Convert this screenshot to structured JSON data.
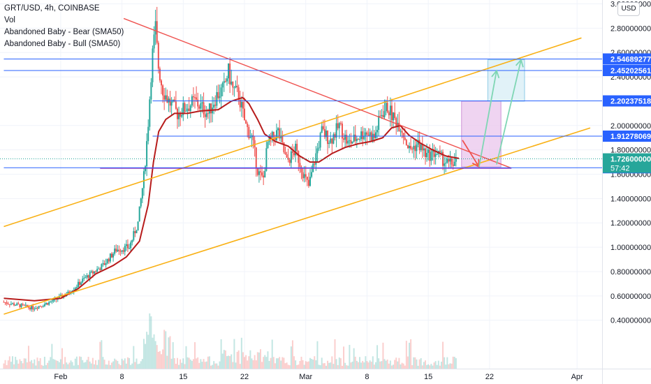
{
  "legend": {
    "symbol_line": "GRT/USD, 4h, COINBASE",
    "vol_label": "Vol",
    "indicator_bear": "Abandoned Baby - Bear (SMA50)",
    "indicator_bull": "Abandoned Baby - Bull (SMA50)"
  },
  "currency_button": "USD",
  "colors": {
    "up": "#26a69a",
    "down": "#ef5350",
    "sma": "#b71c1c",
    "channel": "#f9b116",
    "resistance": "#ef5350",
    "hline": "#2962ff",
    "support": "#9c27b0"
  },
  "chart_data": {
    "type": "candlestick",
    "ylim": [
      0.27,
      3.05
    ],
    "y_ticks": [
      3.0,
      2.8,
      2.6,
      2.4,
      2.0,
      1.8,
      1.6,
      1.4,
      1.2,
      1.0,
      0.8,
      0.6,
      0.4
    ],
    "y_tick_labels": [
      "3.00000000",
      "2.80000000",
      "2.60000000",
      "2.40000000",
      "2.00000000",
      "1.80000000",
      "1.60000000",
      "1.40000000",
      "1.20000000",
      "1.00000000",
      "0.80000000",
      "0.60000000",
      "0.40000000"
    ],
    "x_labels": [
      {
        "label": "Feb",
        "day": 0
      },
      {
        "label": "8",
        "day": 7
      },
      {
        "label": "15",
        "day": 14
      },
      {
        "label": "22",
        "day": 21
      },
      {
        "label": "Mar",
        "day": 28
      },
      {
        "label": "8",
        "day": 35
      },
      {
        "label": "15",
        "day": 42
      },
      {
        "label": "22",
        "day": 49
      },
      {
        "label": "Apr",
        "day": 59
      }
    ],
    "xlim_days": [
      -6.5,
      61.8
    ],
    "price_path": [
      [
        -6.5,
        0.55
      ],
      [
        -3,
        0.5
      ],
      [
        -1,
        0.55
      ],
      [
        1,
        0.62
      ],
      [
        3,
        0.75
      ],
      [
        5,
        0.85
      ],
      [
        6.5,
        0.98
      ],
      [
        8,
        1.0
      ],
      [
        9,
        1.2
      ],
      [
        9.7,
        1.6
      ],
      [
        10.1,
        1.95
      ],
      [
        10.6,
        2.55
      ],
      [
        11.0,
        2.8
      ],
      [
        11.3,
        2.5
      ],
      [
        11.8,
        2.3
      ],
      [
        12.5,
        2.2
      ],
      [
        13.5,
        2.1
      ],
      [
        14.5,
        2.15
      ],
      [
        15.5,
        2.2
      ],
      [
        17,
        2.1
      ],
      [
        18,
        2.25
      ],
      [
        18.8,
        2.3
      ],
      [
        19.3,
        2.45
      ],
      [
        19.8,
        2.3
      ],
      [
        20.5,
        2.25
      ],
      [
        21.3,
        2.0
      ],
      [
        22,
        1.9
      ],
      [
        22.7,
        1.62
      ],
      [
        23.3,
        1.55
      ],
      [
        23.8,
        1.85
      ],
      [
        25,
        1.95
      ],
      [
        26,
        1.7
      ],
      [
        27,
        1.8
      ],
      [
        28,
        1.58
      ],
      [
        28.5,
        1.5
      ],
      [
        29.3,
        1.75
      ],
      [
        30,
        1.95
      ],
      [
        31,
        1.88
      ],
      [
        32,
        2.0
      ],
      [
        33,
        1.85
      ],
      [
        34,
        1.9
      ],
      [
        35,
        1.95
      ],
      [
        36,
        1.9
      ],
      [
        36.8,
        2.1
      ],
      [
        37.5,
        2.15
      ],
      [
        38.3,
        2.05
      ],
      [
        39,
        2.0
      ],
      [
        40,
        1.8
      ],
      [
        41,
        1.85
      ],
      [
        42,
        1.75
      ],
      [
        43,
        1.78
      ],
      [
        43.8,
        1.72
      ],
      [
        44.5,
        1.68
      ],
      [
        45.2,
        1.7
      ]
    ],
    "sma_path": [
      [
        -6.5,
        0.58
      ],
      [
        -3,
        0.56
      ],
      [
        0,
        0.58
      ],
      [
        2,
        0.66
      ],
      [
        4,
        0.78
      ],
      [
        6,
        0.85
      ],
      [
        7.5,
        0.92
      ],
      [
        9,
        1.05
      ],
      [
        10,
        1.35
      ],
      [
        10.6,
        1.7
      ],
      [
        11.2,
        1.95
      ],
      [
        12,
        2.05
      ],
      [
        13,
        2.1
      ],
      [
        14.5,
        2.1
      ],
      [
        16,
        2.12
      ],
      [
        18,
        2.13
      ],
      [
        19.5,
        2.2
      ],
      [
        20.8,
        2.23
      ],
      [
        21.5,
        2.18
      ],
      [
        22.5,
        2.05
      ],
      [
        23.3,
        1.93
      ],
      [
        24.5,
        1.87
      ],
      [
        26,
        1.83
      ],
      [
        27.3,
        1.75
      ],
      [
        28.5,
        1.7
      ],
      [
        29.5,
        1.7
      ],
      [
        31,
        1.77
      ],
      [
        32.5,
        1.82
      ],
      [
        34,
        1.85
      ],
      [
        35.5,
        1.87
      ],
      [
        36.8,
        1.9
      ],
      [
        37.8,
        1.98
      ],
      [
        38.8,
        2.0
      ],
      [
        39.8,
        1.92
      ],
      [
        41,
        1.86
      ],
      [
        42.5,
        1.8
      ],
      [
        44,
        1.75
      ],
      [
        45.5,
        1.73
      ]
    ],
    "sma_name": "SMA50",
    "channel_lines": [
      {
        "from": [
          -6.5,
          0.45
        ],
        "to": [
          60.5,
          1.98
        ]
      },
      {
        "from": [
          -6.5,
          1.17
        ],
        "to": [
          59.5,
          2.72
        ]
      }
    ],
    "resistance_line": {
      "from": [
        7.2,
        2.88
      ],
      "to": [
        51.5,
        1.65
      ]
    },
    "support_line": {
      "from": [
        4.5,
        1.65
      ],
      "to": [
        51.5,
        1.65
      ]
    },
    "horizontal_levels": [
      {
        "price": 2.54689277,
        "label": "2.54689277",
        "from_day": -6.5
      },
      {
        "price": 2.45202561,
        "label": "2.45202561",
        "from_day": -6.5
      },
      {
        "price": 2.20237518,
        "label": "2.20237518",
        "from_day": 10.5
      },
      {
        "price": 1.91278069,
        "label": "1.91278069",
        "from_day": 10.5
      },
      {
        "price": 1.65314426,
        "label": "1.65314426",
        "from_day": -6.5
      }
    ],
    "current_price": {
      "label": "1.72600000",
      "countdown": "57:42",
      "price": 1.726
    },
    "projection_boxes": [
      {
        "from_day": 45.8,
        "to_day": 50.3,
        "top": 2.2,
        "bottom": 1.66,
        "fill": "#e9c6ec",
        "stroke": "#ce93d8"
      },
      {
        "from_day": 48.8,
        "to_day": 53.0,
        "top": 2.54,
        "bottom": 2.2,
        "fill": "#d7eef6",
        "stroke": "#8ecae6"
      }
    ],
    "arrows": [
      {
        "from": [
          45.9,
          1.88
        ],
        "to": [
          47.8,
          1.66
        ],
        "color": "#ef5350"
      },
      {
        "from": [
          47.8,
          1.66
        ],
        "to": [
          49.8,
          2.45
        ],
        "color": "#7fd6b4"
      },
      {
        "from": [
          49.8,
          1.68
        ],
        "to": [
          52.6,
          2.54
        ],
        "color": "#7fd6b4"
      }
    ],
    "volume_max": 100
  }
}
